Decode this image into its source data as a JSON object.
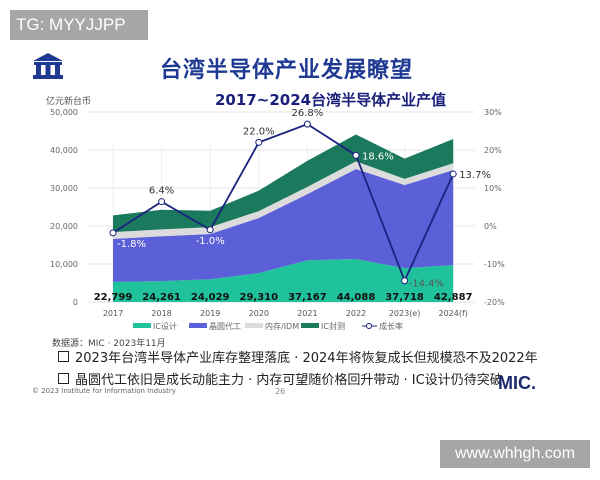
{
  "watermark_top": "TG: MYYJJPP",
  "watermark_bottom": "www.whhgh.com",
  "slide_title": "台湾半导体产业发展瞭望",
  "logo_icon": "institution-building-icon",
  "source": "数据源：MIC · 2023年11月",
  "bullets": [
    "2023年台湾半导体产业库存整理落底 · 2024年将恢复成长但规模恐不及2022年",
    "晶圆代工依旧是成长动能主力 · 内存可望随价格回升带动 · IC设计仍待突破"
  ],
  "footer": {
    "copyright": "© 2023 Institute for Information Industry",
    "page_number": "26",
    "brand": "MIC."
  },
  "chart_data": {
    "type": "area",
    "stacked": true,
    "title": "2017~2024台湾半导体产业产值",
    "ylabel": "亿元新台币",
    "categories": [
      "2017",
      "2018",
      "2019",
      "2020",
      "2021",
      "2022",
      "2023(e)",
      "2024(f)"
    ],
    "ylim": [
      0,
      50000
    ],
    "yticks": [
      "0",
      "10,000",
      "20,000",
      "30,000",
      "40,000",
      "50,000"
    ],
    "y2lim": [
      -20,
      30
    ],
    "y2ticks": [
      "-20%",
      "-10%",
      "0%",
      "10%",
      "20%",
      "30%"
    ],
    "grid": true,
    "legend_position": "bottom",
    "series": [
      {
        "name": "IC设计",
        "color": "#20c29c",
        "values": [
          5300,
          5500,
          6000,
          7600,
          11000,
          11300,
          8900,
          9700
        ]
      },
      {
        "name": "晶圆代工",
        "color": "#5b5fd8",
        "values": [
          11300,
          11800,
          11900,
          14500,
          17400,
          23700,
          21900,
          25000
        ]
      },
      {
        "name": "内存/IDM",
        "color": "#dcdcdc",
        "values": [
          1800,
          1800,
          1800,
          1800,
          1900,
          2000,
          1600,
          1800
        ]
      },
      {
        "name": "IC封测",
        "color": "#1b7a5d",
        "values": [
          4399,
          5161,
          4329,
          5410,
          6867,
          7088,
          5318,
          6387
        ]
      }
    ],
    "totals": [
      "22,799",
      "24,261",
      "24,029",
      "29,310",
      "37,167",
      "44,088",
      "37,718",
      "42,887"
    ],
    "growth": {
      "name": "成长率",
      "color": "#1a237e",
      "values": [
        -1.8,
        6.4,
        -1.0,
        22.0,
        26.8,
        18.6,
        -14.4,
        13.7
      ],
      "labels": [
        "-1.8%",
        "6.4%",
        "-1.0%",
        "22.0%",
        "26.8%",
        "18.6%",
        "-14.4%",
        "13.7%"
      ]
    }
  }
}
